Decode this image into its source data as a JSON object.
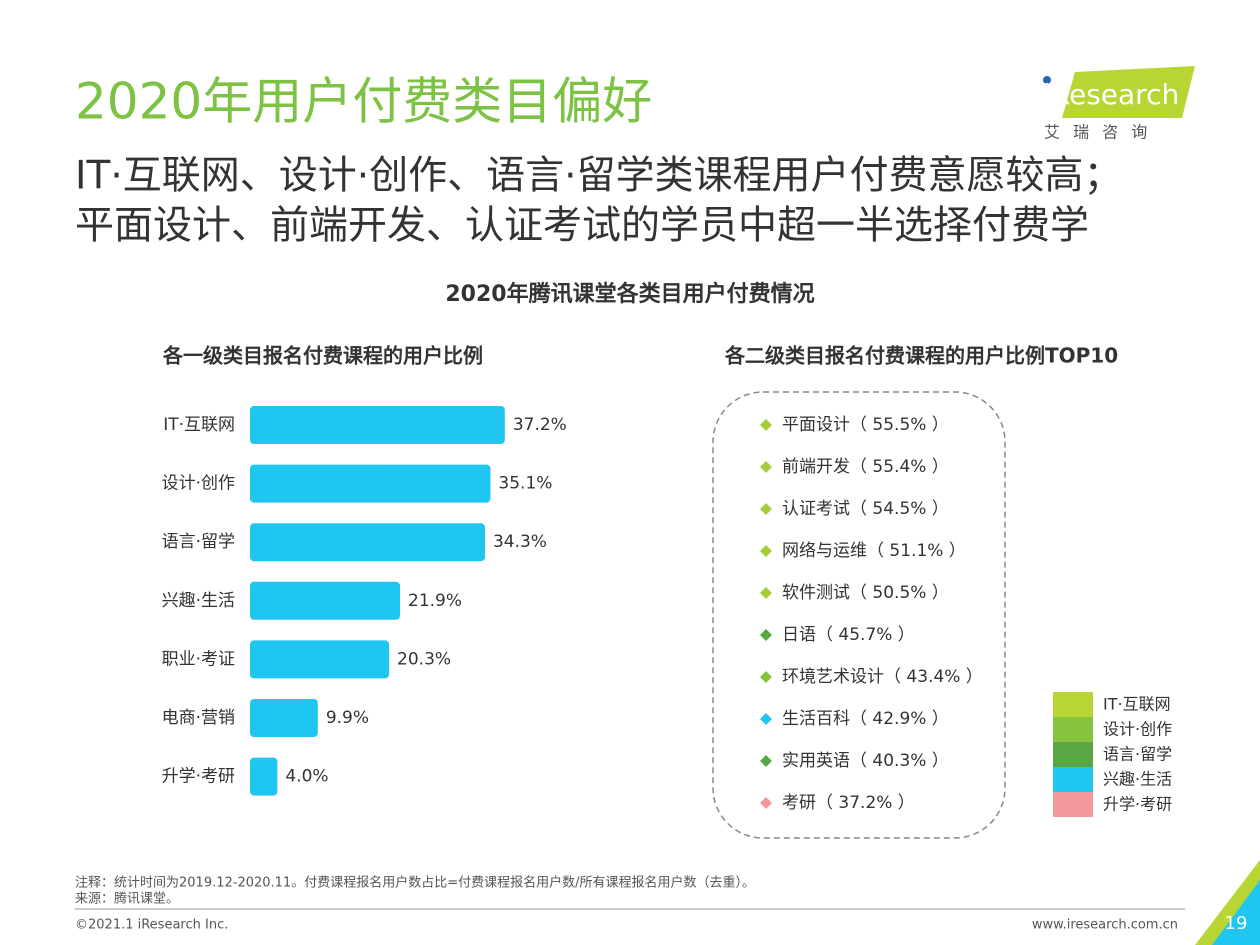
{
  "header": {
    "title": "2020年用户付费类目偏好",
    "subtitle": [
      "IT·互联网、设计·创作、语言·留学类课程用户付费意愿较高；",
      "平面设计、前端开发、认证考试的学员中超一半选择付费学"
    ],
    "logo": "iResearch",
    "logo_sub": "艾 瑞 咨 询"
  },
  "chart_data": {
    "type": "bar",
    "title": "2020年腾讯课堂各类目用户付费情况",
    "subtitle": "各一级类目报名付费课程的用户比例",
    "categories": [
      "IT·互联网",
      "设计·创作",
      "语言·留学",
      "兴趣·生活",
      "职业·考证",
      "电商·营销",
      "升学·考研"
    ],
    "values": [
      37.2,
      35.1,
      34.3,
      21.9,
      20.3,
      9.9,
      4.0
    ],
    "value_labels": [
      "37.2%",
      "35.1%",
      "34.3%",
      "21.9%",
      "20.3%",
      "9.9%",
      "4.0%"
    ],
    "color": "#1fc6f0"
  },
  "top10": {
    "title": "各二级类目报名付费课程的用户比例TOP10",
    "items": [
      {
        "label": "平面设计（ 55.5% ）",
        "color": "#a6cd3a"
      },
      {
        "label": "前端开发（ 55.4% ）",
        "color": "#a6cd3a"
      },
      {
        "label": "认证考试（ 54.5% ）",
        "color": "#a6cd3a"
      },
      {
        "label": "网络与运维（ 51.1% ）",
        "color": "#a6cd3a"
      },
      {
        "label": "软件测试（ 50.5% ）",
        "color": "#a6cd3a"
      },
      {
        "label": "日语（ 45.7% ）",
        "color": "#5aa645"
      },
      {
        "label": "环境艺术设计（ 43.4% ）",
        "color": "#86c440"
      },
      {
        "label": "生活百科（ 42.9% ）",
        "color": "#1fc6f0"
      },
      {
        "label": "实用英语（ 40.3% ）",
        "color": "#5aa645"
      },
      {
        "label": "考研（ 37.2% ）",
        "color": "#f29a9a"
      }
    ]
  },
  "legend": [
    {
      "name": "IT·互联网",
      "color": "#b7d634"
    },
    {
      "name": "设计·创作",
      "color": "#86c440"
    },
    {
      "name": "语言·留学",
      "color": "#5aa645"
    },
    {
      "name": "兴趣·生活",
      "color": "#1fc6f0"
    },
    {
      "name": "升学·考研",
      "color": "#f29a9a"
    }
  ],
  "footer": {
    "note": "注释：统计时间为2019.12-2020.11。付费课程报名用户数占比=付费课程报名用户数/所有课程报名用户数（去重）。",
    "source": "来源：腾讯课堂。",
    "copyright": "©2021.1 iResearch Inc.",
    "url": "www.iresearch.com.cn",
    "page": "19"
  }
}
